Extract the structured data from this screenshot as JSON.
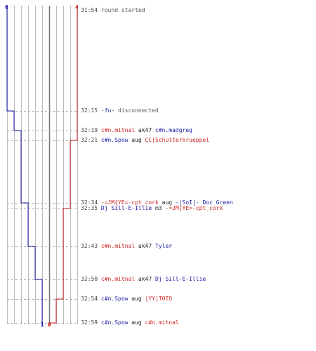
{
  "team_counts": {
    "blue_start": "6",
    "red_start": "4",
    "blue_end": "1",
    "red_end": "0"
  },
  "colors": {
    "blue": "#1a1aa6",
    "red": "#cc2222",
    "grid": "#bbbbbb",
    "dash": "#aaaaaa"
  },
  "chart_data": {
    "type": "line",
    "series": [
      {
        "team": "blue",
        "start": 6,
        "steps": [
          5,
          4,
          3,
          2,
          1
        ]
      },
      {
        "team": "red",
        "start": 4,
        "steps": [
          3,
          2,
          1,
          0
        ]
      }
    ]
  },
  "events": [
    {
      "time": "31:54",
      "parts": [
        {
          "text": "round started",
          "color": "gray"
        }
      ]
    },
    {
      "time": "32:15",
      "parts": [
        {
          "text": "-fu-",
          "color": "blue"
        },
        {
          "text": " disconnected",
          "color": "gray"
        }
      ]
    },
    {
      "time": "32:19",
      "parts": [
        {
          "text": "c#n.mitnal",
          "color": "red"
        },
        {
          "text": " ak47 ",
          "color": "dark"
        },
        {
          "text": "c#n.madgreg",
          "color": "blue"
        }
      ]
    },
    {
      "time": "32:21",
      "parts": [
        {
          "text": "c#n.Spow",
          "color": "blue"
        },
        {
          "text": " aug ",
          "color": "dark"
        },
        {
          "text": "CC|Schulterkrueppel",
          "color": "red"
        }
      ]
    },
    {
      "time": "32:34",
      "parts": [
        {
          "text": "-=JM{YE=-cpt_cork",
          "color": "red"
        },
        {
          "text": " aug ",
          "color": "dark"
        },
        {
          "text": "-|SoI|- Doc Green",
          "color": "blue"
        }
      ]
    },
    {
      "time": "32:35",
      "parts": [
        {
          "text": "Dj Sill-E-Illie",
          "color": "blue"
        },
        {
          "text": " m3 ",
          "color": "dark"
        },
        {
          "text": "-=JM{YE=-cpt_cork",
          "color": "red"
        }
      ]
    },
    {
      "time": "32:43",
      "parts": [
        {
          "text": "c#n.mitnal",
          "color": "red"
        },
        {
          "text": " ak47 ",
          "color": "dark"
        },
        {
          "text": "Tyler",
          "color": "blue"
        }
      ]
    },
    {
      "time": "32:50",
      "parts": [
        {
          "text": "c#n.mitnal",
          "color": "red"
        },
        {
          "text": " ak47 ",
          "color": "dark"
        },
        {
          "text": "Dj Sill-E-Illie",
          "color": "blue"
        }
      ]
    },
    {
      "time": "32:54",
      "parts": [
        {
          "text": "c#n.Spow",
          "color": "blue"
        },
        {
          "text": " aug ",
          "color": "dark"
        },
        {
          "text": "|YY|TOTO",
          "color": "red"
        }
      ]
    },
    {
      "time": "32:59",
      "parts": [
        {
          "text": "c#n.Spow",
          "color": "blue"
        },
        {
          "text": " aug ",
          "color": "dark"
        },
        {
          "text": "c#n.mitnal",
          "color": "red"
        }
      ]
    }
  ]
}
